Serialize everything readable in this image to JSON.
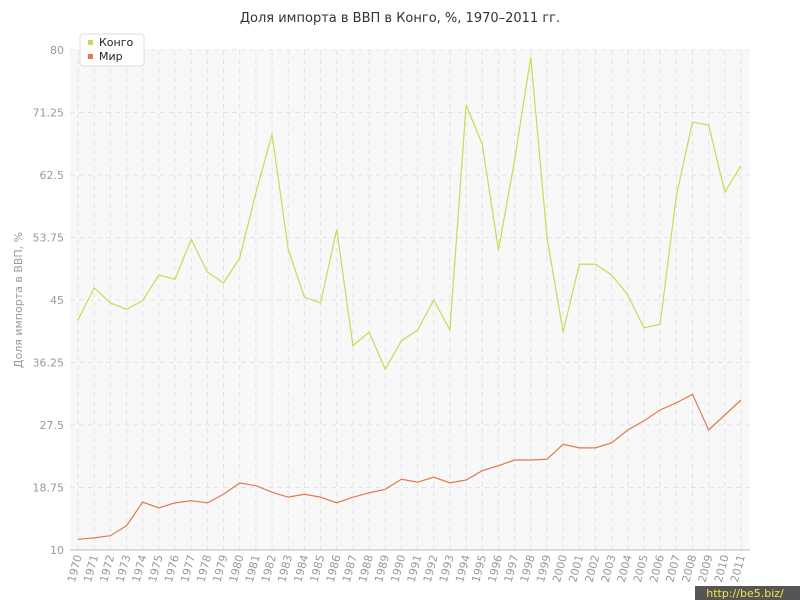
{
  "chart_data": {
    "type": "line",
    "title": "Доля импорта в ВВП в Конго, %, 1970–2011 гг.",
    "y_label": "Доля импорта в ВВП, %",
    "watermark": "http://be5.biz/",
    "categories": [
      "1970",
      "1971",
      "1972",
      "1973",
      "1974",
      "1975",
      "1976",
      "1977",
      "1978",
      "1979",
      "1980",
      "1981",
      "1982",
      "1983",
      "1984",
      "1985",
      "1986",
      "1987",
      "1988",
      "1989",
      "1990",
      "1991",
      "1992",
      "1993",
      "1994",
      "1995",
      "1996",
      "1997",
      "1998",
      "1999",
      "2000",
      "2001",
      "2002",
      "2003",
      "2004",
      "2005",
      "2006",
      "2007",
      "2008",
      "2009",
      "2010",
      "2011"
    ],
    "series": [
      {
        "name": "Конго",
        "color": "#c5dc55",
        "values": [
          42.2,
          46.7,
          44.6,
          43.7,
          44.9,
          48.5,
          47.9,
          53.5,
          48.9,
          47.4,
          50.9,
          60,
          68.2,
          52.1,
          45.4,
          44.6,
          54.9,
          38.6,
          40.5,
          35.3,
          39.3,
          40.8,
          45,
          40.8,
          72.3,
          66.8,
          52,
          64.6,
          79,
          53.8,
          40.5,
          50,
          50,
          48.5,
          45.7,
          41.1,
          41.6,
          59.6,
          69.9,
          69.5,
          60.1,
          63.8
        ]
      },
      {
        "name": "Мир",
        "color": "#e07a4e",
        "values": [
          11.5,
          11.7,
          12,
          13.4,
          16.7,
          15.9,
          16.6,
          16.9,
          16.6,
          17.8,
          19.4,
          19,
          18.1,
          17.4,
          17.8,
          17.4,
          16.6,
          17.4,
          18,
          18.5,
          19.9,
          19.5,
          20.2,
          19.4,
          19.8,
          21.1,
          21.8,
          22.6,
          22.6,
          22.7,
          24.8,
          24.3,
          24.3,
          25,
          26.8,
          28.1,
          29.6,
          30.6,
          31.8,
          26.8,
          28.9,
          31
        ]
      }
    ],
    "ylim": [
      10,
      80
    ],
    "yticks": [
      10,
      18.75,
      27.5,
      36.25,
      45,
      53.75,
      62.5,
      71.25,
      80
    ],
    "grid": true,
    "legend": "top-left"
  }
}
